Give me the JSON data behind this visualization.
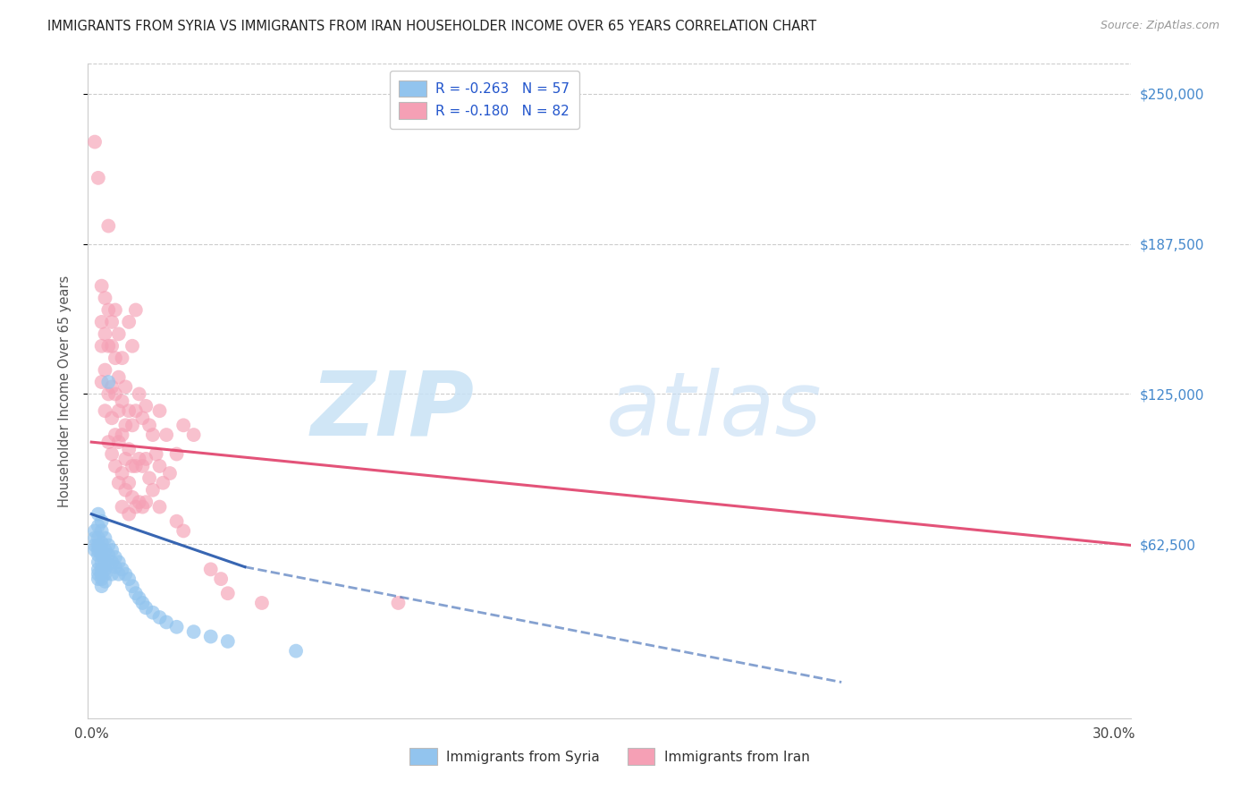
{
  "title": "IMMIGRANTS FROM SYRIA VS IMMIGRANTS FROM IRAN HOUSEHOLDER INCOME OVER 65 YEARS CORRELATION CHART",
  "source": "Source: ZipAtlas.com",
  "ylabel": "Householder Income Over 65 years",
  "ytick_labels": [
    "$62,500",
    "$125,000",
    "$187,500",
    "$250,000"
  ],
  "ytick_values": [
    62500,
    125000,
    187500,
    250000
  ],
  "ymin": -10000,
  "ymax": 262500,
  "xmin": -0.001,
  "xmax": 0.305,
  "legend_syria_R": "-0.263",
  "legend_syria_N": "57",
  "legend_iran_R": "-0.180",
  "legend_iran_N": "82",
  "syria_color": "#92c4ee",
  "iran_color": "#f5a0b5",
  "syria_line_color": "#2255aa",
  "iran_line_color": "#e0406a",
  "background_color": "#ffffff",
  "grid_color": "#cccccc",
  "syria_scatter": [
    [
      0.001,
      68000
    ],
    [
      0.001,
      65000
    ],
    [
      0.001,
      62000
    ],
    [
      0.001,
      60000
    ],
    [
      0.002,
      75000
    ],
    [
      0.002,
      70000
    ],
    [
      0.002,
      65000
    ],
    [
      0.002,
      62000
    ],
    [
      0.002,
      60000
    ],
    [
      0.002,
      58000
    ],
    [
      0.002,
      55000
    ],
    [
      0.002,
      52000
    ],
    [
      0.002,
      50000
    ],
    [
      0.002,
      48000
    ],
    [
      0.003,
      72000
    ],
    [
      0.003,
      68000
    ],
    [
      0.003,
      63000
    ],
    [
      0.003,
      60000
    ],
    [
      0.003,
      58000
    ],
    [
      0.003,
      55000
    ],
    [
      0.003,
      52000
    ],
    [
      0.003,
      50000
    ],
    [
      0.003,
      48000
    ],
    [
      0.003,
      45000
    ],
    [
      0.004,
      65000
    ],
    [
      0.004,
      60000
    ],
    [
      0.004,
      55000
    ],
    [
      0.004,
      52000
    ],
    [
      0.004,
      50000
    ],
    [
      0.004,
      47000
    ],
    [
      0.005,
      130000
    ],
    [
      0.005,
      62000
    ],
    [
      0.005,
      58000
    ],
    [
      0.005,
      54000
    ],
    [
      0.006,
      60000
    ],
    [
      0.006,
      55000
    ],
    [
      0.006,
      50000
    ],
    [
      0.007,
      57000
    ],
    [
      0.007,
      53000
    ],
    [
      0.008,
      55000
    ],
    [
      0.008,
      50000
    ],
    [
      0.009,
      52000
    ],
    [
      0.01,
      50000
    ],
    [
      0.011,
      48000
    ],
    [
      0.012,
      45000
    ],
    [
      0.013,
      42000
    ],
    [
      0.014,
      40000
    ],
    [
      0.015,
      38000
    ],
    [
      0.016,
      36000
    ],
    [
      0.018,
      34000
    ],
    [
      0.02,
      32000
    ],
    [
      0.022,
      30000
    ],
    [
      0.025,
      28000
    ],
    [
      0.03,
      26000
    ],
    [
      0.035,
      24000
    ],
    [
      0.04,
      22000
    ],
    [
      0.06,
      18000
    ]
  ],
  "iran_scatter": [
    [
      0.001,
      230000
    ],
    [
      0.002,
      215000
    ],
    [
      0.003,
      170000
    ],
    [
      0.003,
      155000
    ],
    [
      0.003,
      145000
    ],
    [
      0.003,
      130000
    ],
    [
      0.004,
      165000
    ],
    [
      0.004,
      150000
    ],
    [
      0.004,
      135000
    ],
    [
      0.004,
      118000
    ],
    [
      0.005,
      195000
    ],
    [
      0.005,
      160000
    ],
    [
      0.005,
      145000
    ],
    [
      0.005,
      125000
    ],
    [
      0.005,
      105000
    ],
    [
      0.006,
      155000
    ],
    [
      0.006,
      145000
    ],
    [
      0.006,
      128000
    ],
    [
      0.006,
      115000
    ],
    [
      0.006,
      100000
    ],
    [
      0.007,
      160000
    ],
    [
      0.007,
      140000
    ],
    [
      0.007,
      125000
    ],
    [
      0.007,
      108000
    ],
    [
      0.007,
      95000
    ],
    [
      0.008,
      150000
    ],
    [
      0.008,
      132000
    ],
    [
      0.008,
      118000
    ],
    [
      0.008,
      105000
    ],
    [
      0.008,
      88000
    ],
    [
      0.009,
      140000
    ],
    [
      0.009,
      122000
    ],
    [
      0.009,
      108000
    ],
    [
      0.009,
      92000
    ],
    [
      0.009,
      78000
    ],
    [
      0.01,
      128000
    ],
    [
      0.01,
      112000
    ],
    [
      0.01,
      98000
    ],
    [
      0.01,
      85000
    ],
    [
      0.011,
      155000
    ],
    [
      0.011,
      118000
    ],
    [
      0.011,
      102000
    ],
    [
      0.011,
      88000
    ],
    [
      0.011,
      75000
    ],
    [
      0.012,
      145000
    ],
    [
      0.012,
      112000
    ],
    [
      0.012,
      95000
    ],
    [
      0.012,
      82000
    ],
    [
      0.013,
      160000
    ],
    [
      0.013,
      118000
    ],
    [
      0.013,
      95000
    ],
    [
      0.013,
      78000
    ],
    [
      0.014,
      125000
    ],
    [
      0.014,
      98000
    ],
    [
      0.014,
      80000
    ],
    [
      0.015,
      115000
    ],
    [
      0.015,
      95000
    ],
    [
      0.015,
      78000
    ],
    [
      0.016,
      120000
    ],
    [
      0.016,
      98000
    ],
    [
      0.016,
      80000
    ],
    [
      0.017,
      112000
    ],
    [
      0.017,
      90000
    ],
    [
      0.018,
      108000
    ],
    [
      0.018,
      85000
    ],
    [
      0.019,
      100000
    ],
    [
      0.02,
      118000
    ],
    [
      0.02,
      95000
    ],
    [
      0.02,
      78000
    ],
    [
      0.021,
      88000
    ],
    [
      0.022,
      108000
    ],
    [
      0.023,
      92000
    ],
    [
      0.025,
      100000
    ],
    [
      0.025,
      72000
    ],
    [
      0.027,
      112000
    ],
    [
      0.027,
      68000
    ],
    [
      0.03,
      108000
    ],
    [
      0.035,
      52000
    ],
    [
      0.038,
      48000
    ],
    [
      0.04,
      42000
    ],
    [
      0.05,
      38000
    ],
    [
      0.09,
      38000
    ]
  ]
}
